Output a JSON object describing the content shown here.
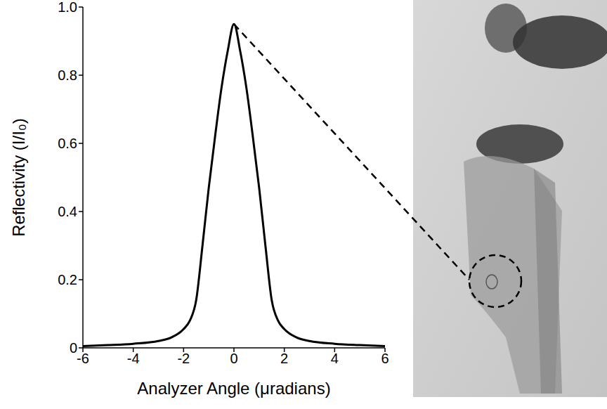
{
  "chart_data": {
    "type": "line",
    "x_label": "Analyzer Angle (μradians)",
    "y_label": "Reflectivity (I/I₀)",
    "x": [
      -6,
      -5,
      -4,
      -3,
      -2.5,
      -2,
      -1.75,
      -1.5,
      -1.25,
      -1,
      -0.75,
      -0.5,
      -0.25,
      0,
      0.25,
      0.5,
      0.75,
      1,
      1.25,
      1.5,
      1.75,
      2,
      2.5,
      3,
      4,
      5,
      6
    ],
    "values": [
      0.005,
      0.008,
      0.012,
      0.02,
      0.03,
      0.055,
      0.08,
      0.14,
      0.3,
      0.47,
      0.62,
      0.76,
      0.87,
      0.95,
      0.87,
      0.76,
      0.62,
      0.47,
      0.3,
      0.14,
      0.08,
      0.055,
      0.03,
      0.02,
      0.012,
      0.008,
      0.005
    ],
    "color": "#000000",
    "xlim": [
      -6,
      6
    ],
    "ylim": [
      0,
      1
    ],
    "xticks": [
      -6,
      -4,
      -2,
      0,
      2,
      4,
      6
    ],
    "yticks": [
      0,
      0.2,
      0.4,
      0.6,
      0.8,
      {
        "value": 1,
        "label": "1.0"
      }
    ],
    "grid": false
  }
}
